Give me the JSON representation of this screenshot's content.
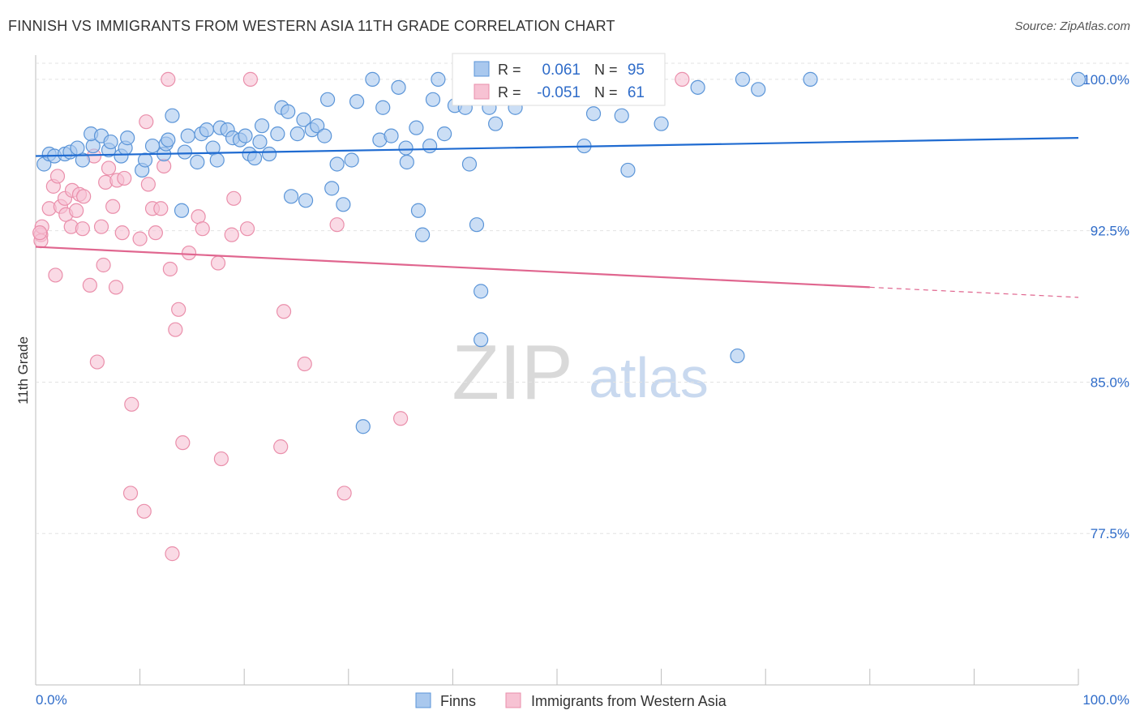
{
  "header": {
    "title": "FINNISH VS IMMIGRANTS FROM WESTERN ASIA 11TH GRADE CORRELATION CHART",
    "source": "Source: ZipAtlas.com"
  },
  "watermark": {
    "zip": "ZIP",
    "atlas": "atlas"
  },
  "stats_legend": [
    {
      "r_label": "R =",
      "r_value": "0.061",
      "n_label": "N =",
      "n_value": "95",
      "color": "#6fa8e8"
    },
    {
      "r_label": "R =",
      "r_value": "-0.051",
      "n_label": "N =",
      "n_value": "61",
      "color": "#f3a7bf"
    }
  ],
  "colors": {
    "finns_fill": "#a9c8ee",
    "finns_stroke": "#5b95d8",
    "finns_line": "#1f6bd1",
    "imm_fill": "#f7c2d3",
    "imm_stroke": "#ea8fab",
    "imm_line": "#e0668f",
    "value_text": "#2f6cc9",
    "grid": "#e3e3e3"
  },
  "chart_data": {
    "type": "scatter",
    "title": "FINNISH VS IMMIGRANTS FROM WESTERN ASIA 11TH GRADE CORRELATION CHART",
    "xlabel": "",
    "ylabel": "11th Grade",
    "xlim": [
      0,
      100
    ],
    "ylim": [
      70.0,
      101.2
    ],
    "x_tick_labels": [
      "0.0%",
      "100.0%"
    ],
    "y_ticks": [
      100.0,
      92.5,
      85.0,
      77.5
    ],
    "y_tick_labels": [
      "100.0%",
      "92.5%",
      "85.0%",
      "77.5%"
    ],
    "grid": true,
    "legend_position": "bottom",
    "series": [
      {
        "name": "Finns",
        "trend": {
          "x": [
            0,
            100
          ],
          "y": [
            96.2,
            97.1
          ]
        },
        "points": [
          [
            0.8,
            95.8
          ],
          [
            1.3,
            96.3
          ],
          [
            1.8,
            96.2
          ],
          [
            2.8,
            96.3
          ],
          [
            3.3,
            96.4
          ],
          [
            4.5,
            96.0
          ],
          [
            5.5,
            96.7
          ],
          [
            4.0,
            96.6
          ],
          [
            5.3,
            97.3
          ],
          [
            6.3,
            97.2
          ],
          [
            7.0,
            96.5
          ],
          [
            7.2,
            96.9
          ],
          [
            8.2,
            96.2
          ],
          [
            8.6,
            96.6
          ],
          [
            8.8,
            97.1
          ],
          [
            10.2,
            95.5
          ],
          [
            10.5,
            96.0
          ],
          [
            11.2,
            96.7
          ],
          [
            12.3,
            96.3
          ],
          [
            12.5,
            96.8
          ],
          [
            12.7,
            97.0
          ],
          [
            13.1,
            98.2
          ],
          [
            14.3,
            96.4
          ],
          [
            14.6,
            97.2
          ],
          [
            15.5,
            95.9
          ],
          [
            15.9,
            97.3
          ],
          [
            16.4,
            97.5
          ],
          [
            17.0,
            96.6
          ],
          [
            17.4,
            96.0
          ],
          [
            17.7,
            97.6
          ],
          [
            18.4,
            97.5
          ],
          [
            18.9,
            97.1
          ],
          [
            19.6,
            97.0
          ],
          [
            20.1,
            97.2
          ],
          [
            20.5,
            96.3
          ],
          [
            21.0,
            96.1
          ],
          [
            21.5,
            96.9
          ],
          [
            21.7,
            97.7
          ],
          [
            22.4,
            96.3
          ],
          [
            23.2,
            97.3
          ],
          [
            23.6,
            98.6
          ],
          [
            24.2,
            98.4
          ],
          [
            25.1,
            97.3
          ],
          [
            25.7,
            98.0
          ],
          [
            26.5,
            97.5
          ],
          [
            27.0,
            97.7
          ],
          [
            27.7,
            97.2
          ],
          [
            28.0,
            99.0
          ],
          [
            28.4,
            94.6
          ],
          [
            28.9,
            95.8
          ],
          [
            29.5,
            93.8
          ],
          [
            30.3,
            96.0
          ],
          [
            30.8,
            98.9
          ],
          [
            24.5,
            94.2
          ],
          [
            25.9,
            94.0
          ],
          [
            14.0,
            93.5
          ],
          [
            32.3,
            100.0
          ],
          [
            33.0,
            97.0
          ],
          [
            33.3,
            98.6
          ],
          [
            34.1,
            97.2
          ],
          [
            34.8,
            99.6
          ],
          [
            35.5,
            96.6
          ],
          [
            35.6,
            95.9
          ],
          [
            36.5,
            97.6
          ],
          [
            36.7,
            93.5
          ],
          [
            37.1,
            92.3
          ],
          [
            37.8,
            96.7
          ],
          [
            38.1,
            99.0
          ],
          [
            38.6,
            100.0
          ],
          [
            39.2,
            97.3
          ],
          [
            40.2,
            98.7
          ],
          [
            41.2,
            98.6
          ],
          [
            41.6,
            95.8
          ],
          [
            42.3,
            92.8
          ],
          [
            42.7,
            89.5
          ],
          [
            42.7,
            87.1
          ],
          [
            43.5,
            98.6
          ],
          [
            44.1,
            97.8
          ],
          [
            46.0,
            98.6
          ],
          [
            47.0,
            99.8
          ],
          [
            52.6,
            96.7
          ],
          [
            53.5,
            98.3
          ],
          [
            56.0,
            99.9
          ],
          [
            56.2,
            98.2
          ],
          [
            56.8,
            95.5
          ],
          [
            56.8,
            99.6
          ],
          [
            58.0,
            99.9
          ],
          [
            60.0,
            97.8
          ],
          [
            63.5,
            99.6
          ],
          [
            67.3,
            86.3
          ],
          [
            67.8,
            100.0
          ],
          [
            69.3,
            99.5
          ],
          [
            74.3,
            100.0
          ],
          [
            31.4,
            82.8
          ],
          [
            100.0,
            100.0
          ]
        ]
      },
      {
        "name": "Immigrants from Western Asia",
        "trend": {
          "x": [
            0,
            80
          ],
          "y": [
            91.7,
            89.7
          ]
        },
        "trend_dashed": {
          "x": [
            80,
            100
          ],
          "y": [
            89.7,
            89.2
          ]
        },
        "points": [
          [
            0.5,
            92.3
          ],
          [
            0.5,
            92.0
          ],
          [
            0.6,
            92.7
          ],
          [
            1.3,
            93.6
          ],
          [
            1.7,
            94.7
          ],
          [
            1.9,
            90.3
          ],
          [
            2.1,
            95.2
          ],
          [
            2.4,
            93.7
          ],
          [
            2.8,
            94.1
          ],
          [
            2.9,
            93.3
          ],
          [
            3.4,
            92.7
          ],
          [
            3.5,
            94.5
          ],
          [
            3.9,
            93.5
          ],
          [
            4.2,
            94.3
          ],
          [
            4.5,
            92.6
          ],
          [
            4.6,
            94.2
          ],
          [
            5.2,
            89.8
          ],
          [
            5.6,
            96.2
          ],
          [
            5.9,
            86.0
          ],
          [
            6.3,
            92.7
          ],
          [
            6.5,
            90.8
          ],
          [
            6.7,
            94.9
          ],
          [
            7.0,
            95.6
          ],
          [
            7.4,
            93.7
          ],
          [
            7.7,
            89.7
          ],
          [
            7.8,
            95.0
          ],
          [
            8.3,
            92.4
          ],
          [
            8.5,
            95.1
          ],
          [
            9.1,
            79.5
          ],
          [
            9.2,
            83.9
          ],
          [
            10.0,
            92.1
          ],
          [
            10.4,
            78.6
          ],
          [
            10.6,
            97.9
          ],
          [
            10.8,
            94.8
          ],
          [
            11.2,
            93.6
          ],
          [
            11.5,
            92.4
          ],
          [
            12.0,
            93.6
          ],
          [
            12.3,
            95.7
          ],
          [
            12.9,
            90.6
          ],
          [
            13.1,
            76.5
          ],
          [
            13.4,
            87.6
          ],
          [
            13.7,
            88.6
          ],
          [
            14.1,
            82.0
          ],
          [
            14.7,
            91.4
          ],
          [
            15.6,
            93.2
          ],
          [
            16.0,
            92.6
          ],
          [
            17.5,
            90.9
          ],
          [
            17.8,
            81.2
          ],
          [
            18.8,
            92.3
          ],
          [
            19.0,
            94.1
          ],
          [
            20.3,
            92.6
          ],
          [
            23.5,
            81.8
          ],
          [
            23.8,
            88.5
          ],
          [
            25.8,
            85.9
          ],
          [
            28.9,
            92.8
          ],
          [
            29.6,
            79.5
          ],
          [
            35.0,
            83.2
          ],
          [
            12.7,
            100.0
          ],
          [
            20.6,
            100.0
          ],
          [
            62.0,
            100.0
          ],
          [
            0.4,
            92.4
          ]
        ]
      }
    ]
  },
  "legend": {
    "items": [
      "Finns",
      "Immigrants from Western Asia"
    ]
  }
}
